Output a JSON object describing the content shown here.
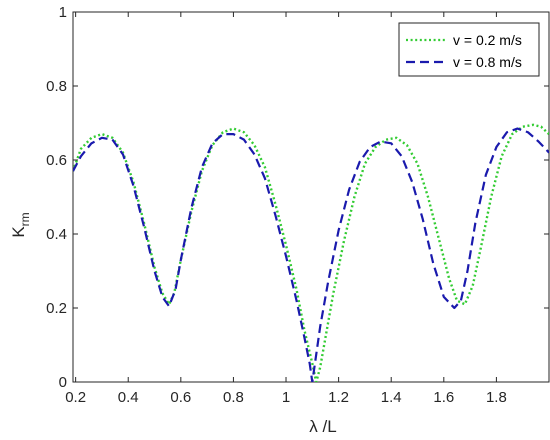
{
  "chart_data": {
    "type": "line",
    "xlabel": "λ /L",
    "ylabel_main": "K",
    "ylabel_sub": "rm",
    "xlim": [
      0.19,
      2.0
    ],
    "ylim": [
      0,
      1
    ],
    "xticks": [
      0.2,
      0.4,
      0.6,
      0.8,
      1.0,
      1.2,
      1.4,
      1.6,
      1.8
    ],
    "xtick_labels": [
      "0.2",
      "0.4",
      "0.6",
      "0.8",
      "1",
      "1.2",
      "1.4",
      "1.6",
      "1.8"
    ],
    "yticks": [
      0,
      0.2,
      0.4,
      0.6,
      0.8,
      1.0
    ],
    "ytick_labels": [
      "0",
      "0.2",
      "0.4",
      "0.6",
      "0.8",
      "1"
    ],
    "grid": false,
    "legend_position": "top-right",
    "series": [
      {
        "name": "v = 0.2 m/s",
        "color": "#33cc33",
        "dash": "dotted",
        "x": [
          0.19,
          0.22,
          0.26,
          0.3,
          0.34,
          0.38,
          0.42,
          0.46,
          0.5,
          0.53,
          0.555,
          0.575,
          0.6,
          0.64,
          0.68,
          0.72,
          0.76,
          0.8,
          0.84,
          0.88,
          0.92,
          0.96,
          1.0,
          1.04,
          1.07,
          1.1,
          1.115,
          1.13,
          1.15,
          1.18,
          1.22,
          1.26,
          1.3,
          1.34,
          1.38,
          1.42,
          1.46,
          1.5,
          1.54,
          1.58,
          1.62,
          1.65,
          1.68,
          1.71,
          1.74,
          1.78,
          1.82,
          1.86,
          1.9,
          1.94,
          1.97,
          2.0
        ],
        "y": [
          0.57,
          0.63,
          0.66,
          0.67,
          0.66,
          0.62,
          0.54,
          0.43,
          0.31,
          0.24,
          0.21,
          0.24,
          0.33,
          0.46,
          0.57,
          0.64,
          0.675,
          0.685,
          0.675,
          0.64,
          0.58,
          0.48,
          0.37,
          0.25,
          0.14,
          0.05,
          0.0,
          0.04,
          0.12,
          0.24,
          0.38,
          0.5,
          0.59,
          0.635,
          0.655,
          0.66,
          0.64,
          0.59,
          0.5,
          0.39,
          0.28,
          0.22,
          0.21,
          0.26,
          0.36,
          0.5,
          0.61,
          0.67,
          0.69,
          0.695,
          0.69,
          0.67
        ]
      },
      {
        "name": "v = 0.8 m/s",
        "color": "#1a1aad",
        "dash": "dashed",
        "x": [
          0.19,
          0.22,
          0.26,
          0.3,
          0.34,
          0.38,
          0.42,
          0.46,
          0.5,
          0.53,
          0.555,
          0.58,
          0.6,
          0.64,
          0.68,
          0.72,
          0.76,
          0.8,
          0.84,
          0.88,
          0.92,
          0.96,
          1.0,
          1.04,
          1.07,
          1.09,
          1.1,
          1.11,
          1.13,
          1.16,
          1.2,
          1.24,
          1.28,
          1.32,
          1.36,
          1.4,
          1.44,
          1.48,
          1.52,
          1.56,
          1.6,
          1.64,
          1.665,
          1.69,
          1.72,
          1.76,
          1.8,
          1.84,
          1.88,
          1.92,
          1.96,
          2.0
        ],
        "y": [
          0.57,
          0.61,
          0.645,
          0.66,
          0.655,
          0.615,
          0.53,
          0.42,
          0.3,
          0.23,
          0.205,
          0.25,
          0.33,
          0.47,
          0.58,
          0.645,
          0.67,
          0.67,
          0.655,
          0.615,
          0.55,
          0.45,
          0.34,
          0.22,
          0.12,
          0.05,
          0.0,
          0.05,
          0.15,
          0.27,
          0.41,
          0.52,
          0.595,
          0.635,
          0.65,
          0.645,
          0.61,
          0.54,
          0.44,
          0.32,
          0.23,
          0.2,
          0.22,
          0.3,
          0.43,
          0.56,
          0.635,
          0.675,
          0.685,
          0.675,
          0.65,
          0.62
        ]
      }
    ]
  }
}
